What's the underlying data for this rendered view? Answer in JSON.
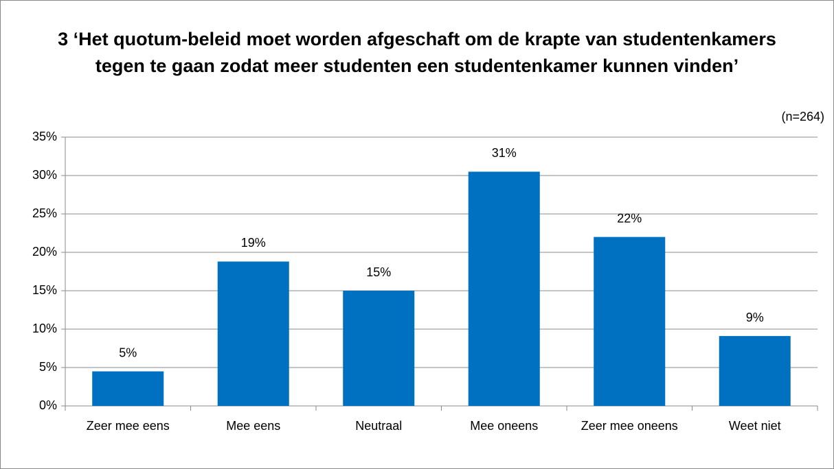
{
  "chart_data": {
    "type": "bar",
    "title": "3 ‘Het quotum-beleid moet worden afgeschaft om de krapte van studentenkamers tegen te gaan zodat meer studenten een studentenkamer kunnen vinden’",
    "annotation": "(n=264)",
    "categories": [
      "Zeer mee eens",
      "Mee eens",
      "Neutraal",
      "Mee oneens",
      "Zeer mee oneens",
      "Weet niet"
    ],
    "values": [
      4.5,
      18.8,
      15,
      30.5,
      22,
      9.1
    ],
    "value_labels": [
      "5%",
      "19%",
      "15%",
      "31%",
      "22%",
      "9%"
    ],
    "color": "#0070c0",
    "ylim": [
      0,
      35
    ],
    "yticks": [
      {
        "value": 0,
        "label": "0%"
      },
      {
        "value": 5,
        "label": "5%"
      },
      {
        "value": 10,
        "label": "10%"
      },
      {
        "value": 15,
        "label": "15%"
      },
      {
        "value": 20,
        "label": "20%"
      },
      {
        "value": 25,
        "label": "25%"
      },
      {
        "value": 30,
        "label": "30%"
      },
      {
        "value": 35,
        "label": "35%"
      }
    ],
    "grid": true
  }
}
